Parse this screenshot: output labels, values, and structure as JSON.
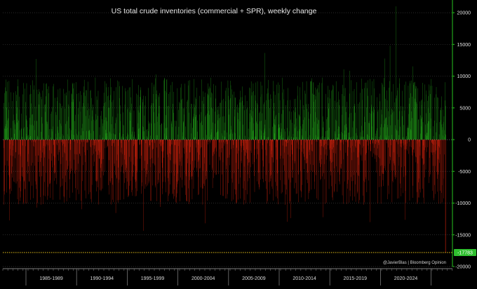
{
  "chart_data": {
    "type": "bar",
    "title": "US total crude inventories (commercial + SPR), weekly change",
    "xlabel": "",
    "ylabel": "",
    "ylim": [
      -20000,
      22000
    ],
    "yticks": [
      20000,
      15000,
      10000,
      5000,
      0,
      -5000,
      -10000,
      -15000,
      -20000
    ],
    "ytick_labels": [
      "20000",
      "15000",
      "10000",
      "5000",
      "0",
      "-5000",
      "-10000",
      "-15000",
      "-20000"
    ],
    "period_labels": [
      "1985-1989",
      "1990-1994",
      "1995-1999",
      "2000-2004",
      "2005-2009",
      "2010-2014",
      "2015-2019",
      "2020-2024"
    ],
    "x_start": "1983",
    "x_end": "2025",
    "grid": true,
    "series": [
      {
        "color": "#29c51f",
        "values_sign": "positive weekly changes (builds)"
      },
      {
        "color": "#ff2a10",
        "values_sign": "negative weekly changes (draws)"
      }
    ],
    "colors": {
      "positive": "#29c51f",
      "negative": "#ff2a10",
      "grid": "#3a3a3a",
      "reference_line": "#e8c21a",
      "last_value_badge": "#2fbf2f"
    },
    "last_value": -17783,
    "last_value_label": "-17783",
    "notable_values": [
      {
        "date": "2020-04",
        "value": 21000
      },
      {
        "date": "2019-09",
        "value": 14800
      },
      {
        "date": "2024-12",
        "value": -17783
      }
    ],
    "source": "@JavierBlas | Bloomberg Opinion"
  }
}
